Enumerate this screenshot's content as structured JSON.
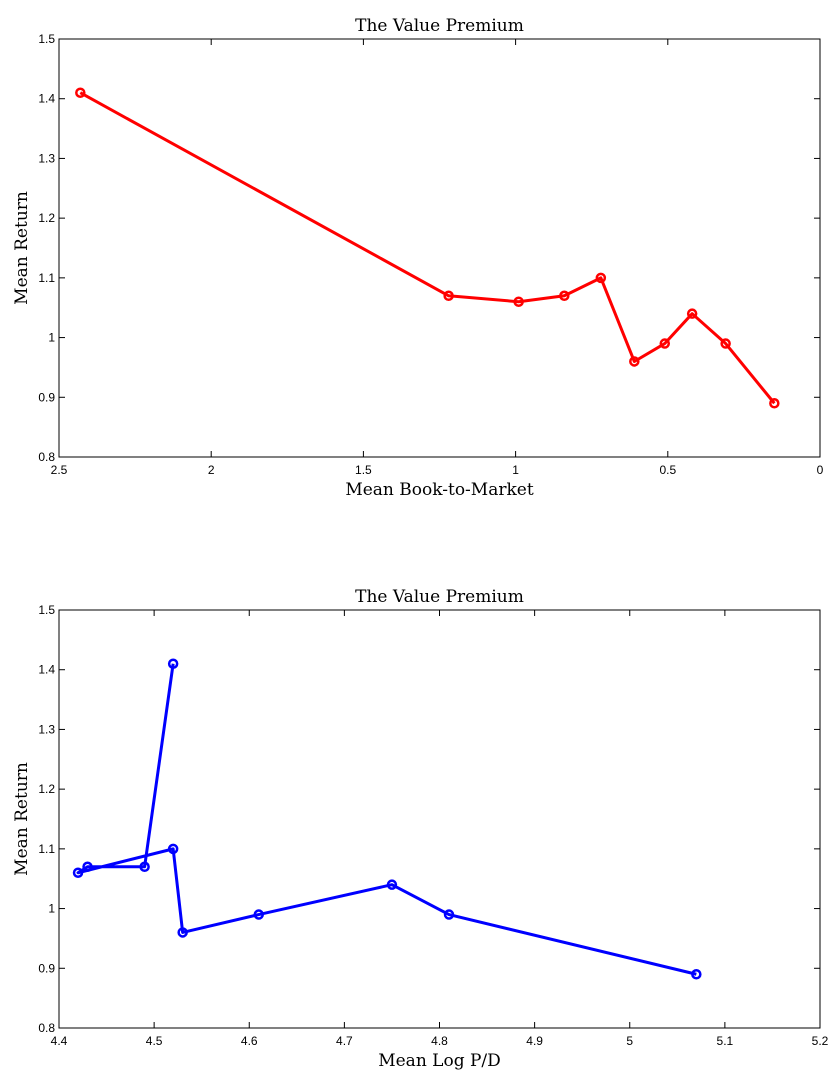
{
  "chart_data": [
    {
      "type": "line",
      "title": "The Value Premium",
      "xlabel": "Mean Book-to-Market",
      "ylabel": "Mean Return",
      "xlim": [
        2.5,
        0
      ],
      "ylim": [
        0.8,
        1.5
      ],
      "x_reversed": true,
      "grid": false,
      "marker": "circle",
      "color": "#ff0000",
      "xticks": [
        {
          "value": 2.5,
          "label": "2.5"
        },
        {
          "value": 2,
          "label": "2"
        },
        {
          "value": 1.5,
          "label": "1.5"
        },
        {
          "value": 1,
          "label": "1"
        },
        {
          "value": 0.5,
          "label": "0.5"
        },
        {
          "value": 0,
          "label": "0"
        }
      ],
      "yticks": [
        {
          "value": 0.8,
          "label": "0.8"
        },
        {
          "value": 0.9,
          "label": "0.9"
        },
        {
          "value": 1.0,
          "label": "1"
        },
        {
          "value": 1.1,
          "label": "1.1"
        },
        {
          "value": 1.2,
          "label": "1.2"
        },
        {
          "value": 1.3,
          "label": "1.3"
        },
        {
          "value": 1.4,
          "label": "1.4"
        },
        {
          "value": 1.5,
          "label": "1.5"
        }
      ],
      "series": [
        {
          "x": [
            2.43,
            1.22,
            0.99,
            0.84,
            0.72,
            0.61,
            0.51,
            0.42,
            0.31,
            0.15
          ],
          "y": [
            1.41,
            1.07,
            1.06,
            1.07,
            1.1,
            0.96,
            0.99,
            1.04,
            0.99,
            0.89
          ]
        }
      ]
    },
    {
      "type": "line",
      "title": "The Value Premium",
      "xlabel": "Mean Log P/D",
      "ylabel": "Mean Return",
      "xlim": [
        4.4,
        5.2
      ],
      "ylim": [
        0.8,
        1.5
      ],
      "x_reversed": false,
      "grid": false,
      "marker": "circle",
      "color": "#0000ff",
      "xticks": [
        {
          "value": 4.4,
          "label": "4.4"
        },
        {
          "value": 4.5,
          "label": "4.5"
        },
        {
          "value": 4.6,
          "label": "4.6"
        },
        {
          "value": 4.7,
          "label": "4.7"
        },
        {
          "value": 4.8,
          "label": "4.8"
        },
        {
          "value": 4.9,
          "label": "4.9"
        },
        {
          "value": 5.0,
          "label": "5"
        },
        {
          "value": 5.1,
          "label": "5.1"
        },
        {
          "value": 5.2,
          "label": "5.2"
        }
      ],
      "yticks": [
        {
          "value": 0.8,
          "label": "0.8"
        },
        {
          "value": 0.9,
          "label": "0.9"
        },
        {
          "value": 1.0,
          "label": "1"
        },
        {
          "value": 1.1,
          "label": "1.1"
        },
        {
          "value": 1.2,
          "label": "1.2"
        },
        {
          "value": 1.3,
          "label": "1.3"
        },
        {
          "value": 1.4,
          "label": "1.4"
        },
        {
          "value": 1.5,
          "label": "1.5"
        }
      ],
      "series": [
        {
          "x": [
            4.52,
            4.49,
            4.43,
            4.42,
            4.52,
            4.53,
            4.61,
            4.75,
            4.81,
            5.07
          ],
          "y": [
            1.41,
            1.07,
            1.07,
            1.06,
            1.1,
            0.96,
            0.99,
            1.04,
            0.99,
            0.89
          ]
        }
      ]
    }
  ]
}
